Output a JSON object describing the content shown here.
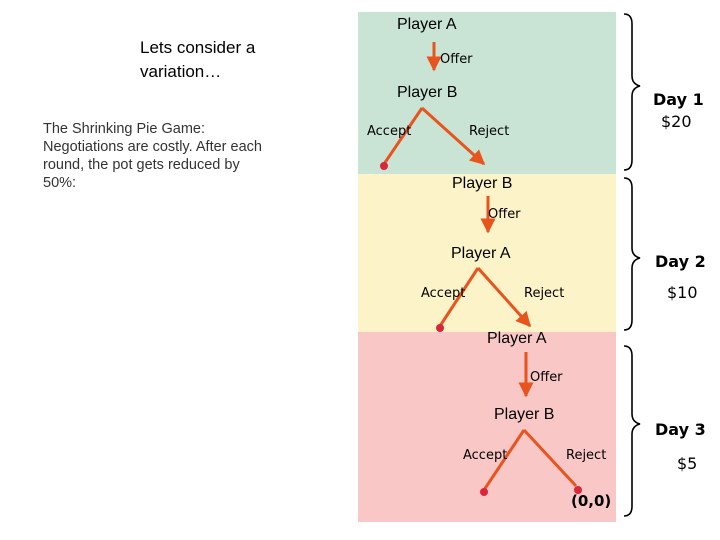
{
  "intro": "Lets consider a variation…",
  "description": "The Shrinking Pie Game: Negotiations are costly. After each round, the pot gets reduced by 50%:",
  "colors": {
    "day1": "#c9e4d4",
    "day2": "#fcf3c8",
    "day3": "#fac7c7",
    "edge": "#e8541e",
    "node": "#d9263a"
  },
  "days": [
    {
      "proposer": "Player A",
      "offer": "Offer",
      "responder": "Player B",
      "accept": "Accept",
      "reject": "Reject",
      "day_label": "Day 1",
      "pot": "$20"
    },
    {
      "proposer": "Player B",
      "offer": "Offer",
      "responder": "Player A",
      "accept": "Accept",
      "reject": "Reject",
      "day_label": "Day 2",
      "pot": "$10"
    },
    {
      "proposer": "Player A",
      "offer": "Offer",
      "responder": "Player B",
      "accept": "Accept",
      "reject": "Reject",
      "day_label": "Day 3",
      "pot": "$5"
    }
  ],
  "terminal_payoff": "(0,0)"
}
